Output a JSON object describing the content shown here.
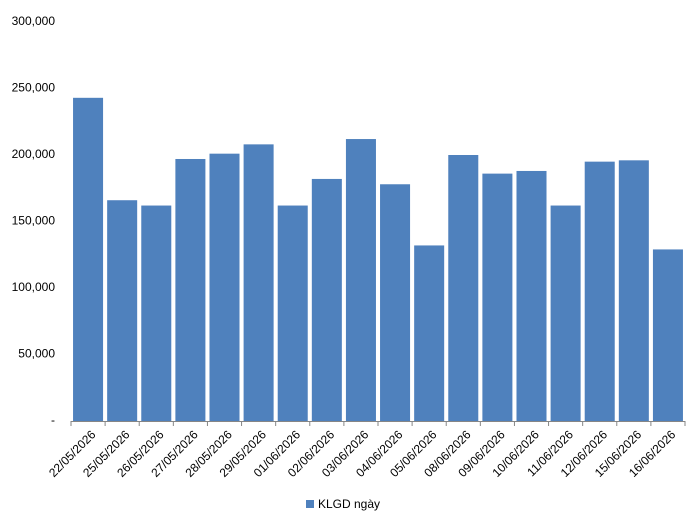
{
  "chart_data": {
    "type": "bar",
    "categories": [
      "22/05/2026",
      "25/05/2026",
      "26/05/2026",
      "27/05/2026",
      "28/05/2026",
      "29/05/2026",
      "01/06/2026",
      "02/06/2026",
      "03/06/2026",
      "04/06/2026",
      "05/06/2026",
      "08/06/2026",
      "09/06/2026",
      "10/06/2026",
      "11/06/2026",
      "12/06/2026",
      "15/06/2026",
      "16/06/2026"
    ],
    "series": [
      {
        "name": "KLGD ngày",
        "color": "#4f81bd",
        "values": [
          243000,
          166000,
          162000,
          197000,
          201000,
          208000,
          162000,
          182000,
          212000,
          178000,
          132000,
          200000,
          186000,
          188000,
          162000,
          195000,
          196000,
          129000
        ]
      }
    ],
    "ylim": [
      0,
      300000
    ],
    "yticks": [
      {
        "value": 0,
        "label": "-"
      },
      {
        "value": 50000,
        "label": "50,000"
      },
      {
        "value": 100000,
        "label": "100,000"
      },
      {
        "value": 150000,
        "label": "150,000"
      },
      {
        "value": 200000,
        "label": "200,000"
      },
      {
        "value": 250000,
        "label": "250,000"
      },
      {
        "value": 300000,
        "label": "300,000"
      }
    ],
    "legend": "bottom"
  }
}
